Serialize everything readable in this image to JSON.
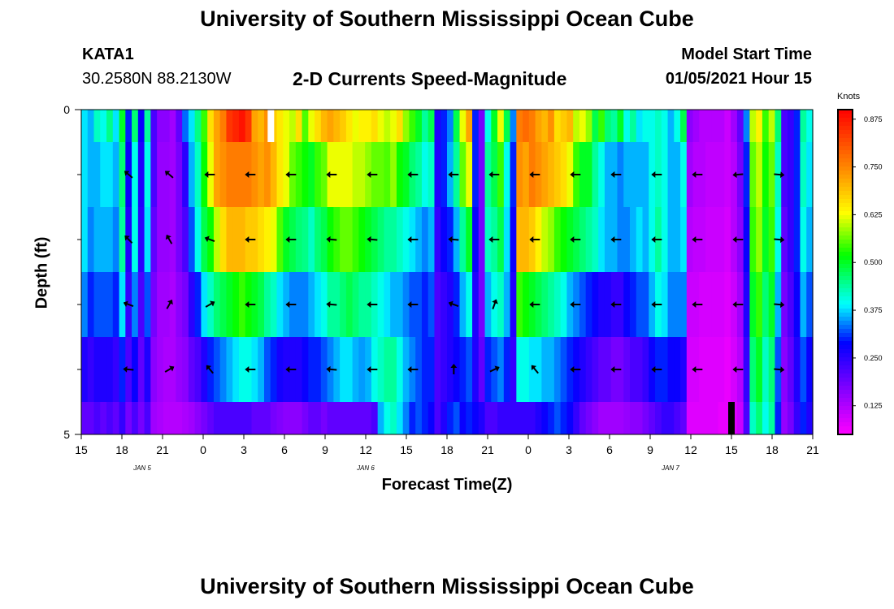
{
  "header": {
    "title": "University of Southern Mississippi Ocean Cube",
    "station_id": "KATA1",
    "coordinates": "30.2580N 88.2130W",
    "subtitle": "2-D Currents Speed-Magnitude",
    "model_start_label": "Model Start Time",
    "model_start_value": "01/05/2021 Hour 15"
  },
  "footer": {
    "title": "University of Southern Mississippi Ocean Cube"
  },
  "colors": {
    "bar_white": "#ffffff",
    "bar_black": "#000000",
    "arrow": "#000000"
  },
  "chart_data": {
    "type": "heatmap",
    "title": "2-D Currents Speed-Magnitude",
    "xlabel": "Forecast Time(Z)",
    "ylabel": "Depth (ft)",
    "x_start_hour": 15,
    "x_range_hours": [
      0,
      54
    ],
    "x_tick_step_hours": 3,
    "x_tick_labels": [
      "15",
      "18",
      "21",
      "0",
      "3",
      "6",
      "9",
      "12",
      "15",
      "18",
      "21",
      "0",
      "3",
      "6",
      "9",
      "12",
      "15",
      "18",
      "21"
    ],
    "day_labels": [
      {
        "label": "JAN 5",
        "hour": 4.5
      },
      {
        "label": "JAN 6",
        "hour": 21
      },
      {
        "label": "JAN 7",
        "hour": 43.5
      }
    ],
    "y_range_ft": [
      0,
      5
    ],
    "y_tick_labels": [
      {
        "value": 0,
        "label": "0"
      },
      {
        "value": 5,
        "label": "5"
      }
    ],
    "y_minor_ticks_ft": [
      1,
      2,
      3,
      4
    ],
    "depth_layers_ft": [
      0,
      0.5,
      1.5,
      2.5,
      3.5,
      4.5,
      5
    ],
    "colorbar": {
      "unit": "Knots",
      "range": [
        0.05,
        0.9
      ],
      "ticks": [
        "0.125",
        "0.250",
        "0.375",
        "0.500",
        "0.625",
        "0.750",
        "0.875"
      ]
    },
    "speed_knots": [
      [
        0.38,
        0.36,
        0.42,
        0.4,
        0.45,
        0.38,
        0.5,
        0.3,
        0.46,
        0.28,
        0.44,
        0.22,
        0.16,
        0.16,
        0.14,
        0.2,
        0.33,
        0.38,
        0.45,
        0.54,
        0.66,
        0.72,
        0.76,
        0.84,
        0.86,
        0.88,
        0.84,
        0.72,
        0.7,
        0.74,
        0.68,
        0.65,
        0.62,
        0.6,
        0.66,
        0.55,
        0.62,
        0.66,
        0.7,
        0.72,
        0.7,
        0.68,
        0.65,
        0.62,
        0.64,
        0.64,
        0.66,
        0.62,
        0.6,
        0.62,
        0.66,
        0.58,
        0.54,
        0.5,
        0.44,
        0.48,
        0.26,
        0.3,
        0.34,
        0.48,
        0.62,
        0.72,
        0.3,
        0.18,
        0.4,
        0.5,
        0.62,
        0.48,
        0.34,
        0.76,
        0.78,
        0.76,
        0.72,
        0.7,
        0.74,
        0.66,
        0.68,
        0.7,
        0.6,
        0.62,
        0.58,
        0.48,
        0.54,
        0.46,
        0.44,
        0.5,
        0.4,
        0.44,
        0.38,
        0.4,
        0.4,
        0.42,
        0.4,
        0.36,
        0.4,
        0.48,
        0.16,
        0.14,
        0.12,
        0.12,
        0.12,
        0.12,
        0.1,
        0.14,
        0.2,
        0.34,
        0.6,
        0.64,
        0.54,
        0.6,
        0.46,
        0.22,
        0.24,
        0.3,
        0.44,
        0.4
      ],
      [
        0.38,
        0.36,
        0.36,
        0.38,
        0.38,
        0.36,
        0.46,
        0.28,
        0.4,
        0.26,
        0.4,
        0.22,
        0.15,
        0.15,
        0.14,
        0.18,
        0.25,
        0.36,
        0.42,
        0.52,
        0.62,
        0.72,
        0.74,
        0.76,
        0.76,
        0.76,
        0.76,
        0.74,
        0.72,
        0.74,
        0.7,
        0.65,
        0.62,
        0.56,
        0.54,
        0.52,
        0.5,
        0.54,
        0.56,
        0.62,
        0.62,
        0.62,
        0.62,
        0.6,
        0.6,
        0.58,
        0.56,
        0.56,
        0.55,
        0.58,
        0.52,
        0.5,
        0.46,
        0.44,
        0.4,
        0.42,
        0.26,
        0.3,
        0.36,
        0.44,
        0.56,
        0.62,
        0.3,
        0.18,
        0.44,
        0.48,
        0.54,
        0.4,
        0.3,
        0.74,
        0.72,
        0.76,
        0.74,
        0.72,
        0.7,
        0.68,
        0.66,
        0.62,
        0.54,
        0.5,
        0.5,
        0.44,
        0.4,
        0.36,
        0.36,
        0.34,
        0.36,
        0.36,
        0.36,
        0.36,
        0.4,
        0.42,
        0.4,
        0.36,
        0.36,
        0.4,
        0.14,
        0.12,
        0.12,
        0.11,
        0.11,
        0.11,
        0.1,
        0.12,
        0.18,
        0.3,
        0.56,
        0.6,
        0.52,
        0.56,
        0.42,
        0.22,
        0.24,
        0.3,
        0.42,
        0.38
      ],
      [
        0.38,
        0.34,
        0.36,
        0.36,
        0.36,
        0.34,
        0.44,
        0.26,
        0.4,
        0.25,
        0.38,
        0.2,
        0.15,
        0.15,
        0.14,
        0.18,
        0.22,
        0.32,
        0.4,
        0.48,
        0.52,
        0.6,
        0.66,
        0.7,
        0.7,
        0.7,
        0.68,
        0.68,
        0.66,
        0.64,
        0.62,
        0.55,
        0.5,
        0.48,
        0.46,
        0.45,
        0.42,
        0.46,
        0.48,
        0.52,
        0.54,
        0.56,
        0.56,
        0.54,
        0.52,
        0.5,
        0.48,
        0.46,
        0.44,
        0.44,
        0.42,
        0.4,
        0.38,
        0.36,
        0.34,
        0.36,
        0.24,
        0.28,
        0.3,
        0.36,
        0.44,
        0.5,
        0.28,
        0.18,
        0.42,
        0.44,
        0.48,
        0.38,
        0.28,
        0.7,
        0.7,
        0.68,
        0.64,
        0.6,
        0.58,
        0.54,
        0.52,
        0.5,
        0.48,
        0.46,
        0.44,
        0.42,
        0.38,
        0.36,
        0.36,
        0.34,
        0.34,
        0.36,
        0.38,
        0.36,
        0.4,
        0.44,
        0.4,
        0.36,
        0.36,
        0.38,
        0.12,
        0.11,
        0.11,
        0.1,
        0.1,
        0.1,
        0.09,
        0.12,
        0.16,
        0.28,
        0.54,
        0.58,
        0.5,
        0.54,
        0.4,
        0.2,
        0.24,
        0.3,
        0.4,
        0.36
      ],
      [
        0.34,
        0.3,
        0.32,
        0.32,
        0.32,
        0.3,
        0.38,
        0.24,
        0.34,
        0.22,
        0.32,
        0.18,
        0.14,
        0.14,
        0.13,
        0.16,
        0.18,
        0.25,
        0.3,
        0.38,
        0.42,
        0.46,
        0.48,
        0.5,
        0.52,
        0.54,
        0.52,
        0.5,
        0.48,
        0.44,
        0.42,
        0.38,
        0.36,
        0.34,
        0.34,
        0.34,
        0.36,
        0.38,
        0.4,
        0.44,
        0.44,
        0.46,
        0.48,
        0.46,
        0.44,
        0.44,
        0.42,
        0.4,
        0.38,
        0.36,
        0.36,
        0.34,
        0.32,
        0.32,
        0.3,
        0.32,
        0.22,
        0.24,
        0.26,
        0.3,
        0.36,
        0.4,
        0.26,
        0.18,
        0.36,
        0.4,
        0.42,
        0.36,
        0.26,
        0.54,
        0.52,
        0.5,
        0.48,
        0.46,
        0.44,
        0.42,
        0.4,
        0.36,
        0.34,
        0.32,
        0.3,
        0.28,
        0.26,
        0.26,
        0.24,
        0.24,
        0.28,
        0.3,
        0.32,
        0.32,
        0.36,
        0.4,
        0.38,
        0.34,
        0.34,
        0.34,
        0.1,
        0.1,
        0.09,
        0.09,
        0.09,
        0.09,
        0.08,
        0.1,
        0.14,
        0.26,
        0.5,
        0.54,
        0.46,
        0.5,
        0.36,
        0.18,
        0.22,
        0.28,
        0.36,
        0.32
      ],
      [
        0.26,
        0.24,
        0.26,
        0.26,
        0.26,
        0.24,
        0.3,
        0.22,
        0.28,
        0.2,
        0.26,
        0.16,
        0.14,
        0.13,
        0.13,
        0.15,
        0.16,
        0.2,
        0.22,
        0.26,
        0.3,
        0.32,
        0.34,
        0.36,
        0.38,
        0.4,
        0.4,
        0.38,
        0.36,
        0.32,
        0.3,
        0.27,
        0.26,
        0.26,
        0.26,
        0.28,
        0.3,
        0.3,
        0.32,
        0.34,
        0.36,
        0.38,
        0.38,
        0.36,
        0.35,
        0.36,
        0.4,
        0.42,
        0.44,
        0.44,
        0.4,
        0.36,
        0.34,
        0.32,
        0.3,
        0.3,
        0.22,
        0.24,
        0.26,
        0.28,
        0.3,
        0.32,
        0.26,
        0.2,
        0.3,
        0.32,
        0.34,
        0.3,
        0.24,
        0.4,
        0.4,
        0.38,
        0.38,
        0.36,
        0.36,
        0.34,
        0.32,
        0.3,
        0.28,
        0.26,
        0.24,
        0.22,
        0.2,
        0.2,
        0.18,
        0.18,
        0.2,
        0.22,
        0.22,
        0.24,
        0.28,
        0.3,
        0.3,
        0.28,
        0.28,
        0.26,
        0.09,
        0.09,
        0.08,
        0.08,
        0.08,
        0.08,
        0.07,
        0.09,
        0.12,
        0.24,
        0.46,
        0.5,
        0.42,
        0.46,
        0.32,
        0.16,
        0.2,
        0.26,
        0.32,
        0.28
      ],
      [
        0.2,
        0.2,
        0.22,
        0.2,
        0.22,
        0.2,
        0.24,
        0.18,
        0.22,
        0.18,
        0.22,
        0.14,
        0.13,
        0.12,
        0.12,
        0.12,
        0.13,
        0.14,
        0.16,
        0.18,
        0.2,
        0.22,
        0.22,
        0.22,
        0.22,
        0.22,
        0.22,
        0.2,
        0.2,
        0.2,
        0.18,
        0.17,
        0.16,
        0.16,
        0.16,
        0.18,
        0.2,
        0.2,
        0.18,
        0.2,
        0.2,
        0.2,
        0.2,
        0.2,
        0.2,
        0.2,
        0.22,
        0.36,
        0.4,
        0.42,
        0.38,
        0.34,
        0.3,
        0.32,
        0.3,
        0.28,
        0.22,
        0.26,
        0.3,
        0.32,
        0.28,
        0.3,
        0.28,
        0.26,
        0.22,
        0.22,
        0.24,
        0.24,
        0.24,
        0.24,
        0.24,
        0.24,
        0.26,
        0.28,
        0.3,
        0.32,
        0.3,
        0.28,
        0.24,
        0.2,
        0.18,
        0.16,
        0.14,
        0.14,
        0.14,
        0.14,
        0.15,
        0.16,
        0.16,
        0.18,
        0.2,
        0.22,
        0.24,
        0.24,
        0.22,
        0.2,
        0.08,
        0.08,
        0.08,
        0.08,
        0.08,
        0.07,
        0.07,
        0.08,
        0.1,
        0.22,
        0.42,
        0.46,
        0.4,
        0.44,
        0.3,
        0.15,
        0.18,
        0.24,
        0.3,
        0.26
      ]
    ],
    "arrow_hours": [
      3.5,
      6.5,
      9.5,
      12.5,
      15.5,
      18.5,
      21.5,
      24.5,
      27.5,
      30.5,
      33.5,
      36.5,
      39.5,
      42.5,
      45.5,
      48.5,
      51.5
    ],
    "arrow_depths_ft": [
      1,
      2,
      3,
      4
    ],
    "arrow_direction_deg": [
      [
        220,
        220,
        180,
        180,
        180,
        180,
        180,
        180,
        180,
        180,
        180,
        180,
        180,
        180,
        180,
        175,
        5
      ],
      [
        225,
        240,
        200,
        180,
        180,
        185,
        185,
        180,
        185,
        180,
        180,
        180,
        180,
        180,
        180,
        180,
        5
      ],
      [
        200,
        300,
        330,
        180,
        180,
        185,
        180,
        180,
        200,
        290,
        180,
        180,
        180,
        180,
        180,
        180,
        5
      ],
      [
        185,
        330,
        230,
        180,
        180,
        185,
        180,
        180,
        270,
        335,
        230,
        180,
        180,
        180,
        180,
        180,
        5
      ]
    ],
    "annotations": [
      {
        "hour": 14,
        "depth_from": 0,
        "depth_to": 0.5,
        "color": "white"
      },
      {
        "hour": 48,
        "depth_from": 4.5,
        "depth_to": 5,
        "color": "black"
      }
    ]
  }
}
